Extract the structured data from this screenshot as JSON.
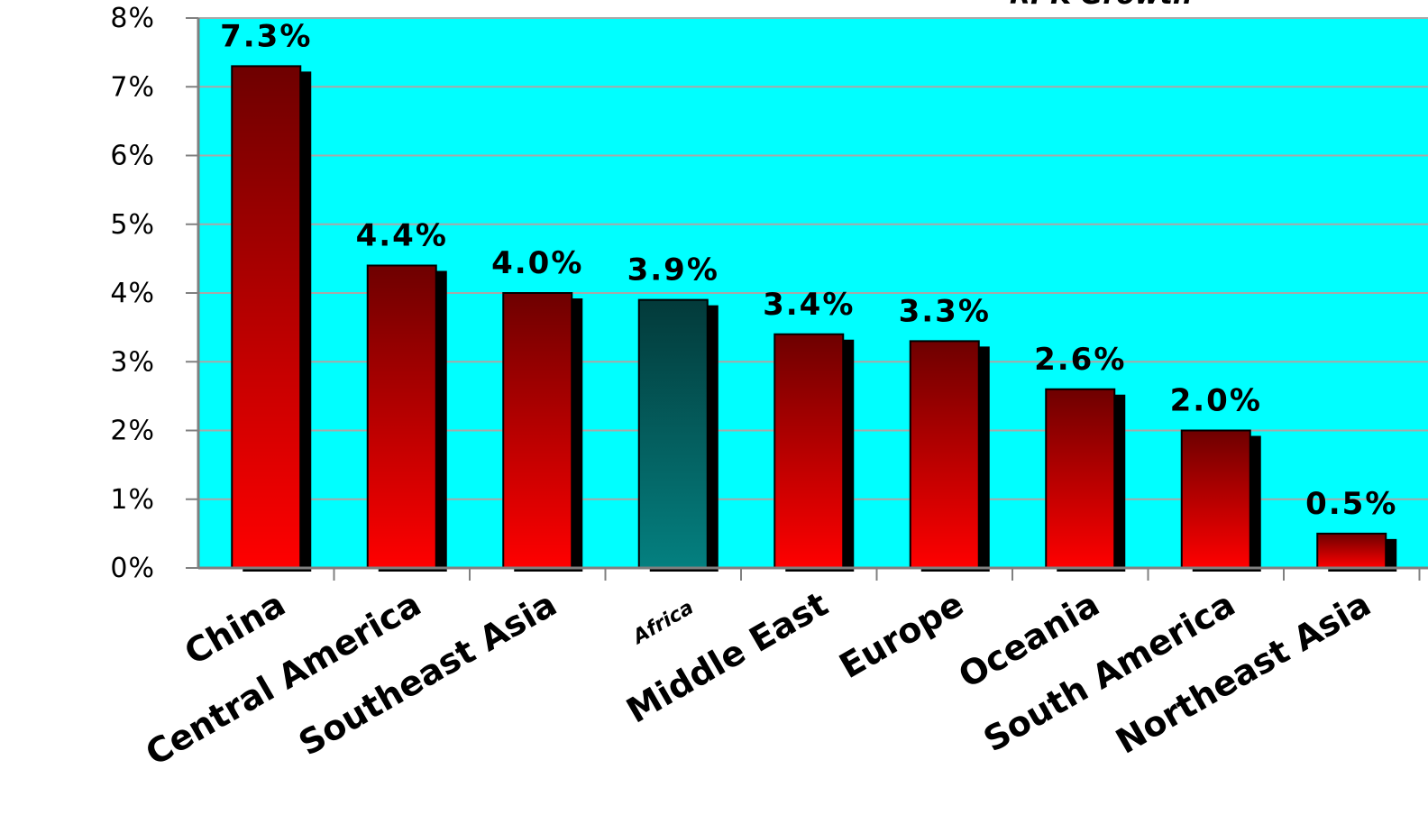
{
  "chart_data": {
    "type": "bar",
    "title": "RPK Growth",
    "categories": [
      "China",
      "Central America",
      "Southeast Asia",
      "Africa",
      "Middle East",
      "Europe",
      "Oceania",
      "South America",
      "Northeast Asia"
    ],
    "values": [
      7.3,
      4.4,
      4.0,
      3.9,
      3.4,
      3.3,
      2.6,
      2.0,
      0.5
    ],
    "value_labels": [
      "7.3%",
      "4.4%",
      "4.0%",
      "3.9%",
      "3.4%",
      "3.3%",
      "2.6%",
      "2.0%",
      "0.5%"
    ],
    "ylim": [
      0,
      8
    ],
    "yticks": [
      "0%",
      "1%",
      "2%",
      "3%",
      "4%",
      "5%",
      "6%",
      "7%",
      "8%"
    ],
    "grid": true,
    "colors": {
      "plot_background": "#00FFFF",
      "bar_top": "#6E0000",
      "bar_bottom": "#FF0000",
      "highlight_top": "#033A3A",
      "highlight_bottom": "#048080",
      "highlight_category": "Africa"
    }
  }
}
